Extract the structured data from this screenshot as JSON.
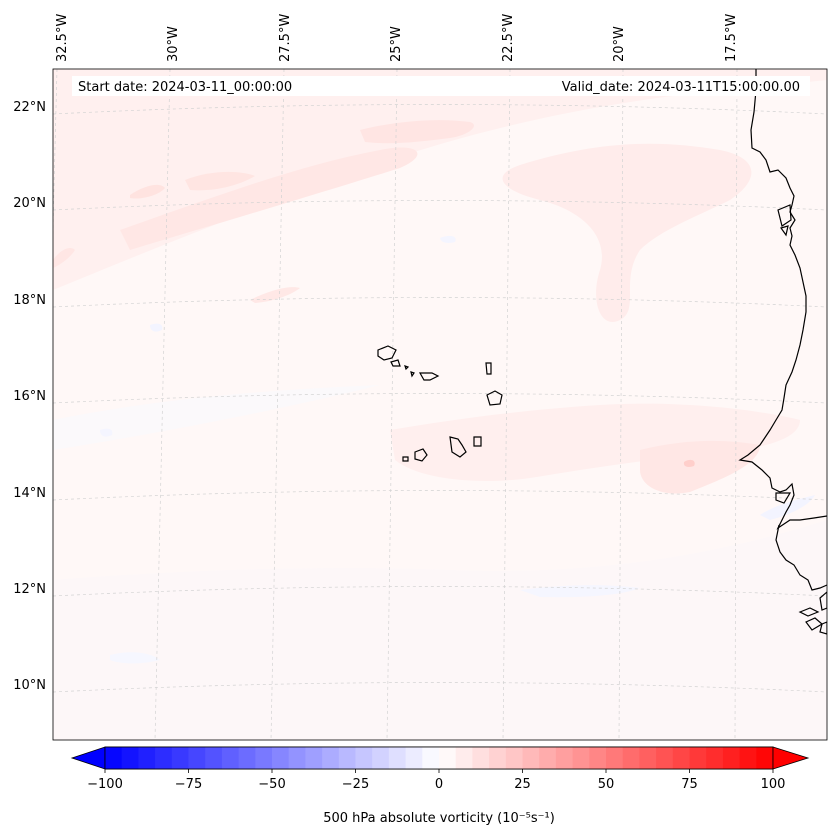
{
  "map": {
    "start_date_label": "Start date: 2024-03-11_00:00:00",
    "valid_date_label": "Valid_date: 2024-03-11T15:00:00.00",
    "lon_labels": [
      "32.5°W",
      "30°W",
      "27.5°W",
      "25°W",
      "22.5°W",
      "20°W",
      "17.5°W"
    ],
    "lat_labels": [
      "22°N",
      "20°N",
      "18°N",
      "16°N",
      "14°N",
      "12°N",
      "10°N"
    ],
    "field": "500 hPa absolute vorticity",
    "features": [
      "Cape Verde islands",
      "West African coastline"
    ]
  },
  "colorbar": {
    "label": "500 hPa absolute vorticity (10⁻⁵s⁻¹)",
    "min": -100,
    "max": 100,
    "tick_values": [
      "−100",
      "−75",
      "−50",
      "−25",
      "0",
      "25",
      "50",
      "75",
      "100"
    ],
    "colors": {
      "negative": "#0000ff",
      "zero": "#ffffff",
      "positive": "#ff0000"
    }
  }
}
